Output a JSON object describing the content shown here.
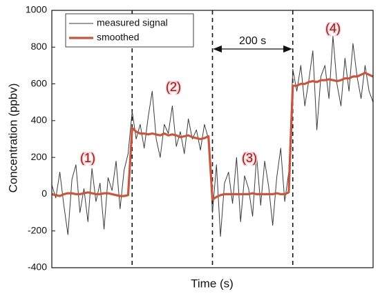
{
  "chart_data": {
    "type": "line",
    "xlabel": "Time (s)",
    "ylabel": "Concentration (ppbv)",
    "xlim": [
      0,
      800
    ],
    "ylim": [
      -400,
      1000
    ],
    "yticks": [
      -400,
      -200,
      0,
      200,
      400,
      600,
      800,
      1000
    ],
    "x": [
      0,
      10,
      20,
      30,
      40,
      50,
      60,
      70,
      80,
      90,
      100,
      110,
      120,
      130,
      140,
      150,
      160,
      170,
      180,
      190,
      200,
      210,
      220,
      230,
      240,
      250,
      260,
      270,
      280,
      290,
      300,
      310,
      320,
      330,
      340,
      350,
      360,
      370,
      380,
      390,
      400,
      410,
      420,
      430,
      440,
      450,
      460,
      470,
      480,
      490,
      500,
      510,
      520,
      530,
      540,
      550,
      560,
      570,
      580,
      590,
      600,
      610,
      620,
      630,
      640,
      650,
      660,
      670,
      680,
      690,
      700,
      710,
      720,
      730,
      740,
      750,
      760,
      770,
      780,
      790,
      800
    ],
    "series": [
      {
        "name": "measured signal",
        "color": "#3a3a3a",
        "values": [
          50,
          -20,
          120,
          -60,
          -220,
          80,
          160,
          -100,
          30,
          -150,
          140,
          -40,
          60,
          -190,
          90,
          20,
          180,
          -80,
          130,
          220,
          450,
          300,
          380,
          250,
          420,
          560,
          300,
          200,
          380,
          330,
          480,
          260,
          340,
          220,
          410,
          300,
          350,
          240,
          380,
          300,
          -100,
          160,
          -230,
          60,
          120,
          -50,
          200,
          -150,
          100,
          30,
          -120,
          210,
          -60,
          180,
          40,
          -170,
          90,
          250,
          -40,
          120,
          680,
          560,
          700,
          480,
          620,
          780,
          350,
          640,
          700,
          520,
          860,
          600,
          480,
          740,
          560,
          820,
          640,
          520,
          700,
          560,
          500
        ]
      },
      {
        "name": "smoothed",
        "color": "#c8553d",
        "values": [
          0,
          -5,
          -10,
          0,
          5,
          5,
          0,
          0,
          5,
          10,
          5,
          0,
          0,
          5,
          5,
          0,
          -5,
          -10,
          -10,
          -5,
          360,
          340,
          330,
          330,
          325,
          330,
          325,
          320,
          330,
          320,
          325,
          320,
          310,
          315,
          320,
          310,
          305,
          300,
          305,
          315,
          -30,
          -15,
          -5,
          0,
          0,
          0,
          0,
          0,
          0,
          0,
          5,
          0,
          0,
          0,
          0,
          0,
          5,
          0,
          0,
          10,
          590,
          590,
          600,
          600,
          610,
          615,
          610,
          620,
          620,
          625,
          620,
          615,
          620,
          630,
          630,
          640,
          640,
          650,
          660,
          650,
          640
        ]
      }
    ],
    "vlines": [
      200,
      400,
      600
    ],
    "annotations": [
      "(1)",
      "(2)",
      "(3)",
      "(4)",
      "200 s"
    ],
    "legend": "upper left"
  }
}
